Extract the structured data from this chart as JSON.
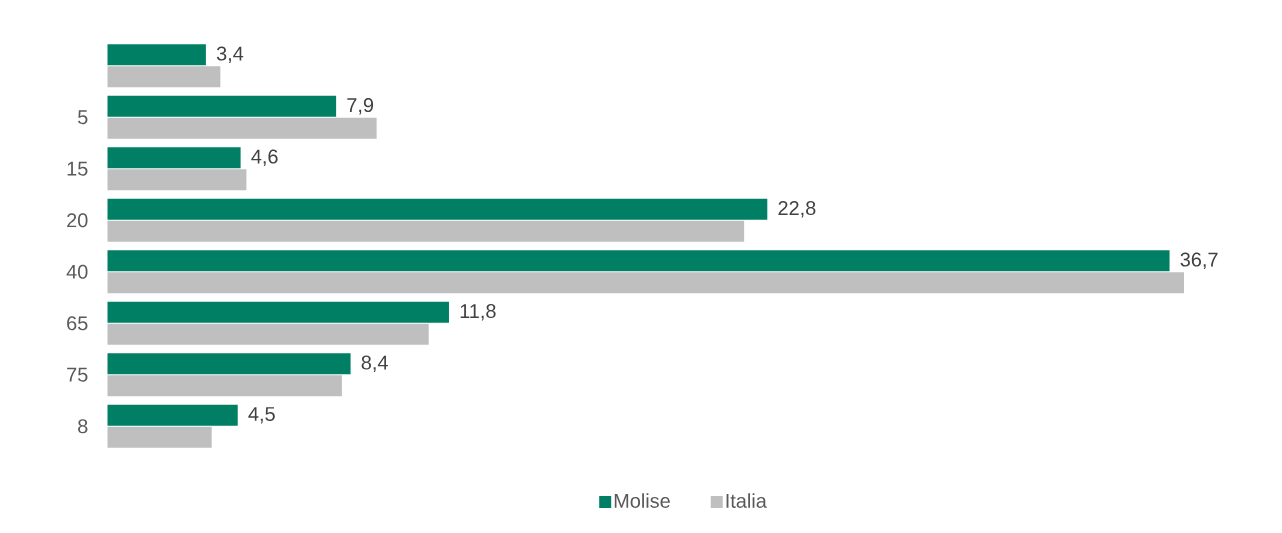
{
  "chart_data": {
    "type": "bar",
    "orientation": "horizontal",
    "categories": [
      null,
      "5",
      "15",
      "20",
      "40",
      "65",
      "75",
      "8"
    ],
    "series": [
      {
        "name": "Molise",
        "color": "#007f65",
        "values": [
          3.4,
          7.9,
          4.6,
          22.8,
          36.7,
          11.8,
          8.4,
          4.5
        ],
        "value_labels": [
          "3,4",
          "7,9",
          "4,6",
          "22,8",
          "36,7",
          "11,8",
          "8,4",
          "4,5"
        ]
      },
      {
        "name": "Italia",
        "color": "#bfbfbf",
        "values": [
          3.9,
          9.3,
          4.8,
          22.0,
          37.2,
          11.1,
          8.1,
          3.6
        ]
      }
    ],
    "legend": "bottom"
  }
}
